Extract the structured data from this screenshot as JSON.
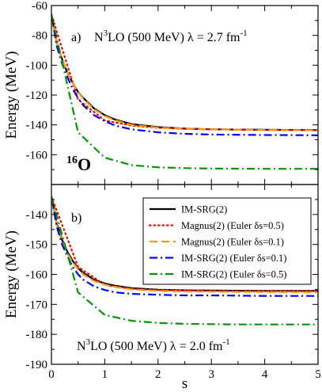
{
  "chart_data": [
    {
      "type": "line",
      "panel_label": "a)",
      "annotation": "N³LO (500 MeV)  λ = 2.7 fm⁻¹",
      "annotation_parts": {
        "n": "N",
        "n_sup": "3",
        "rest": "LO (500 MeV)  λ = 2.7 fm",
        "fm_sup": "-1"
      },
      "nucleus": {
        "mass": "16",
        "symbol": "O"
      },
      "xlabel": "",
      "ylabel": "Energy (MeV)",
      "xlim": [
        0,
        5
      ],
      "ylim": [
        -180,
        -60
      ],
      "yticks": [
        -160,
        -140,
        -120,
        -100,
        -80,
        -60
      ],
      "series": [
        {
          "name": "IM-SRG(2)",
          "color": "#000000",
          "dash": "solid",
          "x": [
            0,
            0.1,
            0.2,
            0.3,
            0.4,
            0.5,
            0.6,
            0.8,
            1.0,
            1.2,
            1.5,
            2.0,
            2.5,
            3.0,
            4.0,
            5.0
          ],
          "y": [
            -66,
            -85,
            -96,
            -105,
            -112,
            -118,
            -122,
            -129,
            -133.5,
            -136.5,
            -139.5,
            -141.5,
            -142.5,
            -143,
            -143.3,
            -143.5
          ]
        },
        {
          "name": "Magnus(2) (Euler δs=0.5)",
          "color": "#ff0000",
          "dash": "dotted",
          "x": [
            0,
            0.5,
            1.0,
            1.5,
            2.0,
            2.5,
            3.0,
            3.5,
            4.0,
            4.5,
            5.0
          ],
          "y": [
            -66,
            -123,
            -137,
            -140.5,
            -142,
            -142.7,
            -143,
            -143.2,
            -143.4,
            -143.5,
            -143.5
          ]
        },
        {
          "name": "Magnus(2) (Euler δs=0.1)",
          "color": "#ff9900",
          "dash": "dashed",
          "x": [
            0,
            0.1,
            0.2,
            0.3,
            0.4,
            0.5,
            0.6,
            0.8,
            1.0,
            1.2,
            1.5,
            2.0,
            2.5,
            3.0,
            4.0,
            5.0
          ],
          "y": [
            -66,
            -85,
            -96,
            -105,
            -112,
            -118,
            -122.5,
            -129.5,
            -134,
            -137,
            -140,
            -141.8,
            -142.5,
            -143,
            -143.4,
            -143.7
          ]
        },
        {
          "name": "IM-SRG(2) (Euler δs=0.1)",
          "color": "#0000ff",
          "dash": "dashdot",
          "x": [
            0,
            0.1,
            0.2,
            0.3,
            0.4,
            0.5,
            0.6,
            0.8,
            1.0,
            1.2,
            1.5,
            2.0,
            2.5,
            3.0,
            4.0,
            5.0
          ],
          "y": [
            -66,
            -87,
            -99,
            -108,
            -116,
            -122,
            -127,
            -133.5,
            -137.5,
            -140.5,
            -143,
            -145,
            -146,
            -146.5,
            -146.8,
            -147
          ]
        },
        {
          "name": "IM-SRG(2) (Euler δs=0.5)",
          "color": "#009900",
          "dash": "dashdot",
          "x": [
            0,
            0.5,
            1.0,
            1.5,
            2.0,
            2.5,
            3.0,
            3.5,
            4.0,
            4.5,
            5.0
          ],
          "y": [
            -66,
            -145,
            -162,
            -167,
            -168.5,
            -169,
            -169.3,
            -169.4,
            -169.5,
            -169.5,
            -169.5
          ]
        }
      ]
    },
    {
      "type": "line",
      "panel_label": "b)",
      "annotation": "N³LO (500 MeV)  λ = 2.0 fm⁻¹",
      "annotation_parts": {
        "n": "N",
        "n_sup": "3",
        "rest": "LO (500 MeV)  λ = 2.0 fm",
        "fm_sup": "-1"
      },
      "xlabel": "s",
      "ylabel": "Energy (MeV)",
      "xlim": [
        0,
        5
      ],
      "ylim": [
        -190,
        -130
      ],
      "xticks": [
        0,
        1,
        2,
        3,
        4,
        5
      ],
      "yticks": [
        -190,
        -180,
        -170,
        -160,
        -150,
        -140
      ],
      "legend_position": "top-right",
      "series": [
        {
          "name": "IM-SRG(2)",
          "color": "#000000",
          "dash": "solid",
          "x": [
            0,
            0.1,
            0.2,
            0.3,
            0.4,
            0.5,
            0.6,
            0.8,
            1.0,
            1.2,
            1.5,
            2.0,
            2.5,
            3.0,
            4.0,
            5.0
          ],
          "y": [
            -134,
            -143,
            -148.5,
            -152.5,
            -155.5,
            -158,
            -159.5,
            -161.8,
            -163,
            -163.8,
            -164.6,
            -165.1,
            -165.3,
            -165.4,
            -165.5,
            -165.5
          ]
        },
        {
          "name": "Magnus(2) (Euler δs=0.5)",
          "color": "#ff0000",
          "dash": "dotted",
          "x": [
            0,
            0.5,
            1.0,
            1.5,
            2.0,
            2.5,
            3.0,
            3.5,
            4.0,
            4.5,
            5.0
          ],
          "y": [
            -134,
            -157.5,
            -163.5,
            -164.8,
            -165.2,
            -165.4,
            -165.5,
            -165.6,
            -165.6,
            -165.6,
            -165.6
          ]
        },
        {
          "name": "Magnus(2) (Euler δs=0.1)",
          "color": "#ff9900",
          "dash": "dashed",
          "x": [
            0,
            0.1,
            0.2,
            0.3,
            0.4,
            0.5,
            0.6,
            0.8,
            1.0,
            1.2,
            1.5,
            2.0,
            2.5,
            3.0,
            4.0,
            5.0
          ],
          "y": [
            -134,
            -143.5,
            -149,
            -153,
            -156,
            -158.3,
            -160,
            -162.2,
            -163.4,
            -164.2,
            -165,
            -165.5,
            -165.7,
            -165.8,
            -165.9,
            -166
          ]
        },
        {
          "name": "IM-SRG(2) (Euler δs=0.1)",
          "color": "#0000ff",
          "dash": "dashdot",
          "x": [
            0,
            0.1,
            0.2,
            0.3,
            0.4,
            0.5,
            0.6,
            0.8,
            1.0,
            1.2,
            1.5,
            2.0,
            2.5,
            3.0,
            4.0,
            5.0
          ],
          "y": [
            -134,
            -144,
            -150,
            -154,
            -157.5,
            -160,
            -161.8,
            -164,
            -165.2,
            -166,
            -166.5,
            -166.8,
            -167,
            -167,
            -167.2,
            -167.2
          ]
        },
        {
          "name": "IM-SRG(2) (Euler δs=0.5)",
          "color": "#009900",
          "dash": "dashdot",
          "x": [
            0,
            0.5,
            1.0,
            1.5,
            2.0,
            2.5,
            3.0,
            3.5,
            4.0,
            4.5,
            5.0
          ],
          "y": [
            -134,
            -166,
            -173.5,
            -175.5,
            -176.2,
            -176.5,
            -176.6,
            -176.7,
            -176.7,
            -176.7,
            -176.7
          ]
        }
      ]
    }
  ]
}
